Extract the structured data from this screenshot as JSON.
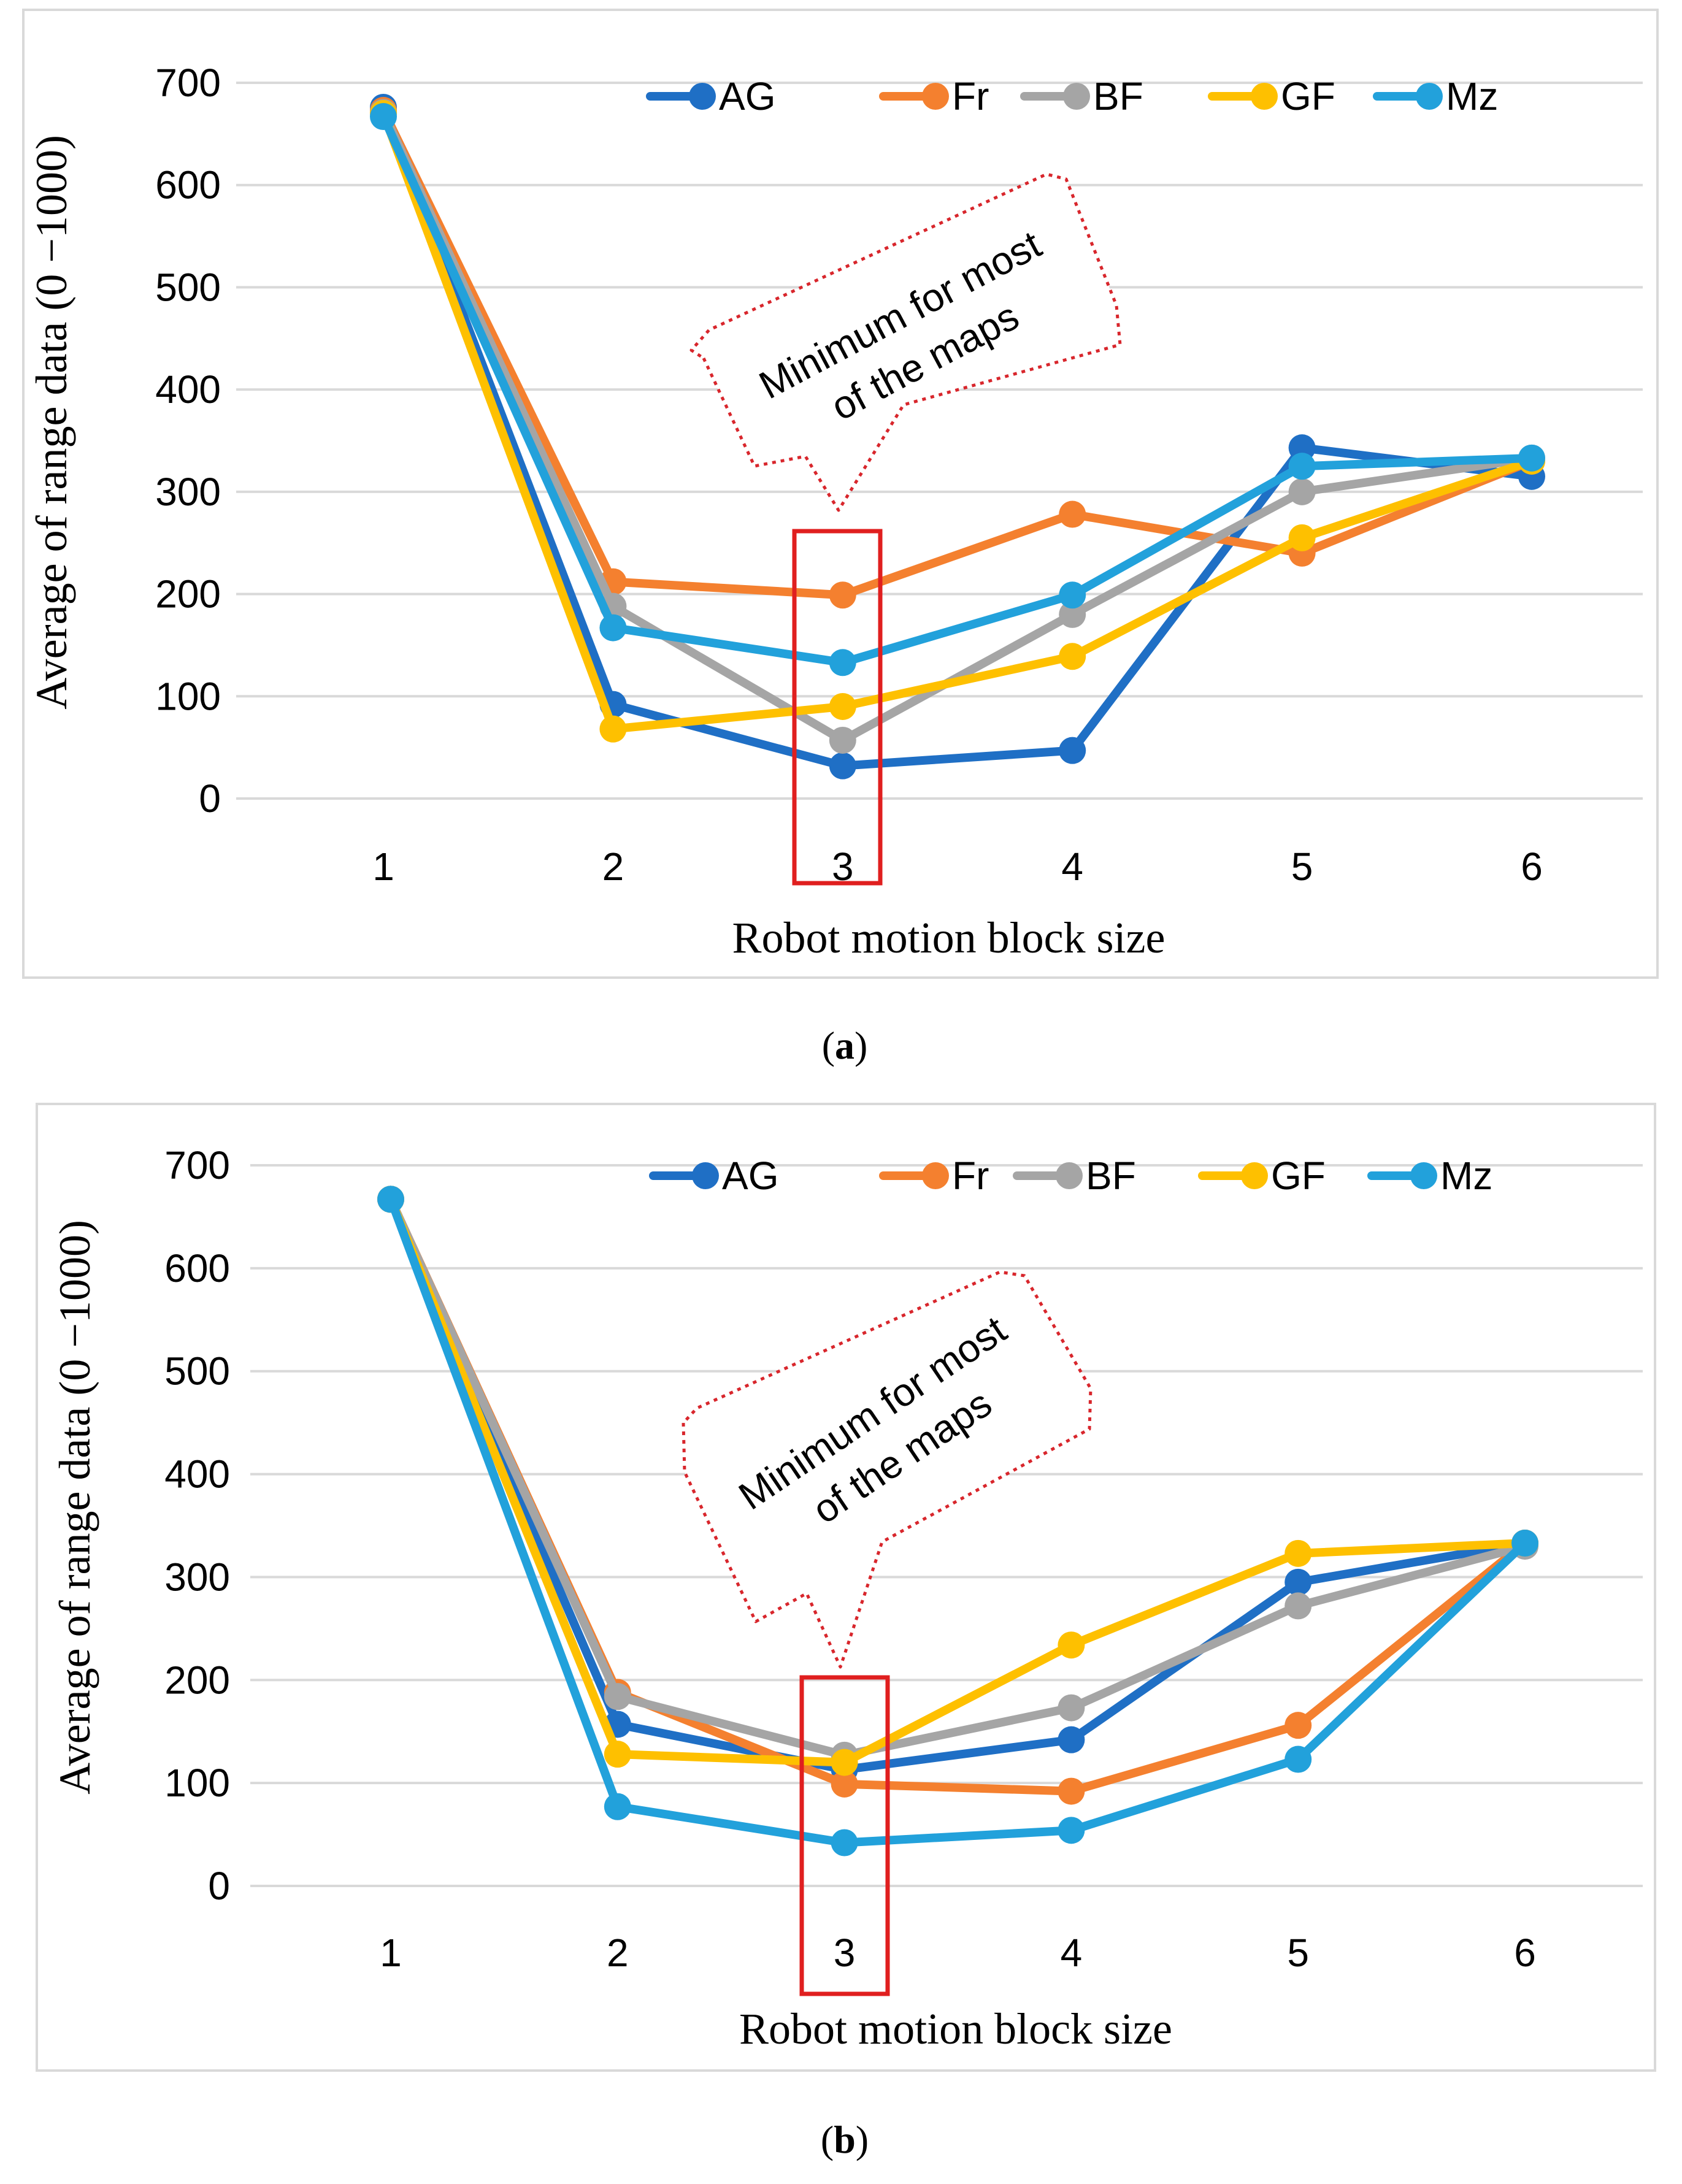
{
  "chart_data": [
    {
      "type": "line",
      "panel": "a",
      "caption_open": "(",
      "caption_letter": "a",
      "caption_close": ")",
      "xlabel": "Robot motion block size",
      "ylabel": "Average of range data (0 −1000)",
      "categories": [
        "1",
        "2",
        "3",
        "4",
        "5",
        "6"
      ],
      "y_ticks": [
        "0",
        "100",
        "200",
        "300",
        "400",
        "500",
        "600",
        "700"
      ],
      "ylim": [
        0,
        700
      ],
      "grid": true,
      "legend_position": "top-right",
      "series": [
        {
          "name": "AG",
          "color": "#1f6fc5",
          "values": [
            676,
            92,
            32,
            47,
            343,
            315
          ]
        },
        {
          "name": "Fr",
          "color": "#f4802f",
          "values": [
            673,
            212,
            199,
            278,
            240,
            330
          ]
        },
        {
          "name": "BF",
          "color": "#a5a5a5",
          "values": [
            671,
            188,
            57,
            180,
            300,
            333
          ]
        },
        {
          "name": "GF",
          "color": "#fec000",
          "values": [
            670,
            68,
            90,
            139,
            255,
            330
          ]
        },
        {
          "name": "Mz",
          "color": "#22a1db",
          "values": [
            667,
            167,
            133,
            199,
            325,
            333
          ]
        }
      ],
      "annotation": {
        "line1": "Minimum for most",
        "line2": "of the maps",
        "highlight_category": "3"
      }
    },
    {
      "type": "line",
      "panel": "b",
      "caption_open": "(",
      "caption_letter": "b",
      "caption_close": ")",
      "xlabel": "Robot motion block size",
      "ylabel": "Average of range data (0 −1000)",
      "categories": [
        "1",
        "2",
        "3",
        "4",
        "5",
        "6"
      ],
      "y_ticks": [
        "0",
        "100",
        "200",
        "300",
        "400",
        "500",
        "600",
        "700"
      ],
      "ylim": [
        0,
        700
      ],
      "grid": true,
      "legend_position": "top-right",
      "series": [
        {
          "name": "AG",
          "color": "#1f6fc5",
          "values": [
            667,
            157,
            113,
            142,
            295,
            333
          ]
        },
        {
          "name": "Fr",
          "color": "#f4802f",
          "values": [
            667,
            188,
            99,
            92,
            156,
            333
          ]
        },
        {
          "name": "BF",
          "color": "#a5a5a5",
          "values": [
            667,
            184,
            127,
            173,
            272,
            330
          ]
        },
        {
          "name": "GF",
          "color": "#fec000",
          "values": [
            667,
            128,
            120,
            234,
            323,
            333
          ]
        },
        {
          "name": "Mz",
          "color": "#22a1db",
          "values": [
            667,
            77,
            42,
            54,
            123,
            333
          ]
        }
      ],
      "annotation": {
        "line1": "Minimum for most",
        "line2": "of the maps",
        "highlight_category": "3"
      }
    }
  ]
}
